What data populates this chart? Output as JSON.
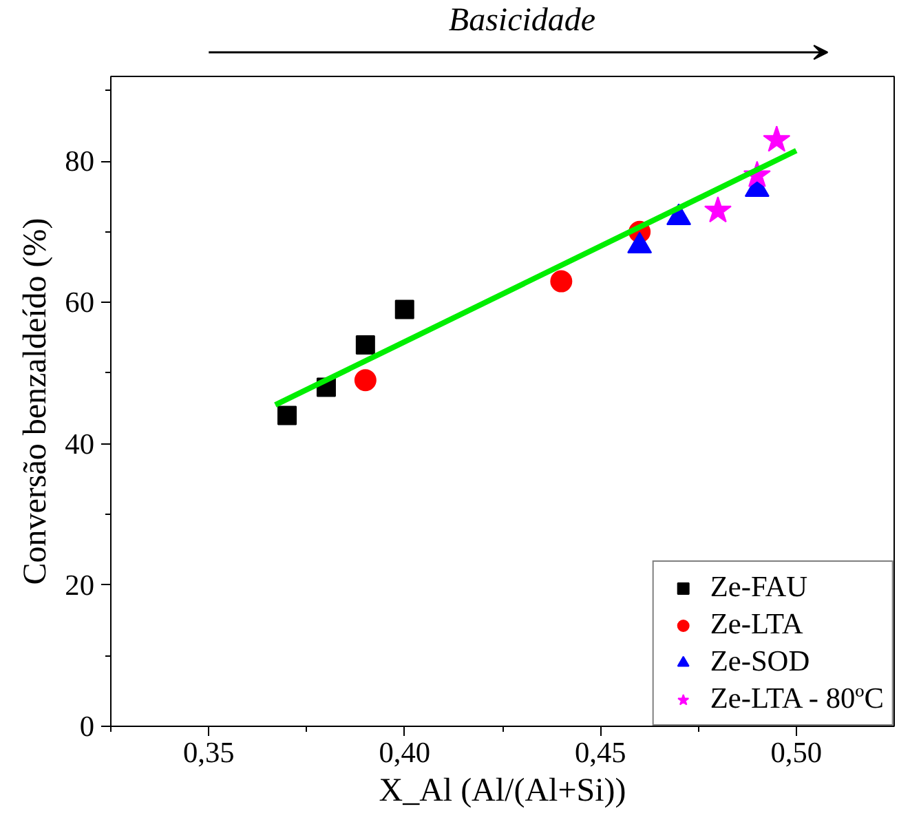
{
  "chart_data": {
    "type": "scatter",
    "xlabel": "X_Al (Al/(Al+Si))",
    "ylabel": "Conversão benzaldeído (%)",
    "annotations": [
      "Basicidade"
    ],
    "series": [
      {
        "name": "Ze-FAU",
        "color": "#000000",
        "marker": "square",
        "x": [
          0.37,
          0.38,
          0.39,
          0.4
        ],
        "values": [
          44,
          48,
          54,
          59
        ]
      },
      {
        "name": "Ze-LTA",
        "color": "#ff0000",
        "marker": "circle",
        "x": [
          0.39,
          0.44,
          0.46
        ],
        "values": [
          49,
          63,
          70
        ]
      },
      {
        "name": "Ze-SOD",
        "color": "#0000ff",
        "marker": "triangle",
        "x": [
          0.46,
          0.47,
          0.49
        ],
        "values": [
          68,
          72,
          76
        ]
      },
      {
        "name": "Ze-LTA - 80ºC",
        "color": "#ff00ff",
        "marker": "star",
        "x": [
          0.48,
          0.49,
          0.495
        ],
        "values": [
          73,
          78,
          83
        ]
      },
      {
        "type": "line",
        "color": "#00ee00",
        "x": [
          0.367,
          0.5
        ],
        "values": [
          45.5,
          81.5
        ]
      }
    ],
    "xlim": [
      0.325,
      0.525
    ],
    "ylim": [
      0,
      92
    ],
    "xticks": [
      {
        "value": 0.325,
        "label": null
      },
      {
        "value": 0.35,
        "label": "0,35"
      },
      {
        "value": 0.375,
        "label": null
      },
      {
        "value": 0.4,
        "label": "0,40"
      },
      {
        "value": 0.425,
        "label": null
      },
      {
        "value": 0.45,
        "label": "0,45"
      },
      {
        "value": 0.475,
        "label": null
      },
      {
        "value": 0.5,
        "label": "0,50"
      }
    ],
    "yticks": [
      0,
      {
        "value": 10,
        "label": null
      },
      20,
      {
        "value": 30,
        "label": null
      },
      40,
      {
        "value": 50,
        "label": null
      },
      60,
      {
        "value": 70,
        "label": null
      },
      80,
      {
        "value": 90,
        "label": null
      }
    ],
    "grid": false,
    "legend": "bottom right"
  }
}
